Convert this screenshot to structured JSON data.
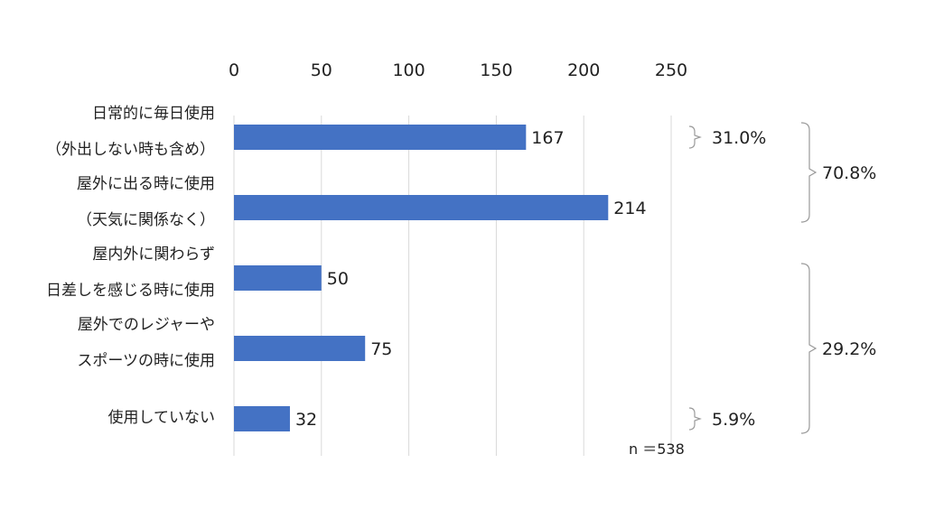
{
  "chart_data": {
    "type": "bar",
    "orientation": "horizontal",
    "categories": [
      [
        "日常的に毎日使用",
        "（外出しない時も含め）"
      ],
      [
        "屋外に出る時に使用",
        "（天気に関係なく）"
      ],
      [
        "屋内外に関わらず",
        "日差しを感じる時に使用"
      ],
      [
        "屋外でのレジャーや",
        "スポーツの時に使用"
      ],
      [
        "使用していない"
      ]
    ],
    "values": [
      167,
      214,
      50,
      75,
      32
    ],
    "value_labels": [
      "167",
      "214",
      "50",
      "75",
      "32"
    ],
    "xlim": [
      0,
      250
    ],
    "x_ticks": [
      0,
      50,
      100,
      150,
      200,
      250
    ],
    "x_tick_labels": [
      "0",
      "50",
      "100",
      "150",
      "200",
      "250"
    ],
    "x_axis_position": "top",
    "grid": true,
    "bar_color": "#4472C4",
    "percent_annotations": [
      {
        "text": "31.0%",
        "categories": [
          0
        ]
      },
      {
        "text": "5.9%",
        "categories": [
          4
        ]
      }
    ],
    "group_annotations": [
      {
        "text": "70.8%",
        "categories": [
          0,
          1
        ]
      },
      {
        "text": "29.2%",
        "categories": [
          2,
          3,
          4
        ]
      }
    ],
    "sample_size_label": "n ＝538"
  }
}
